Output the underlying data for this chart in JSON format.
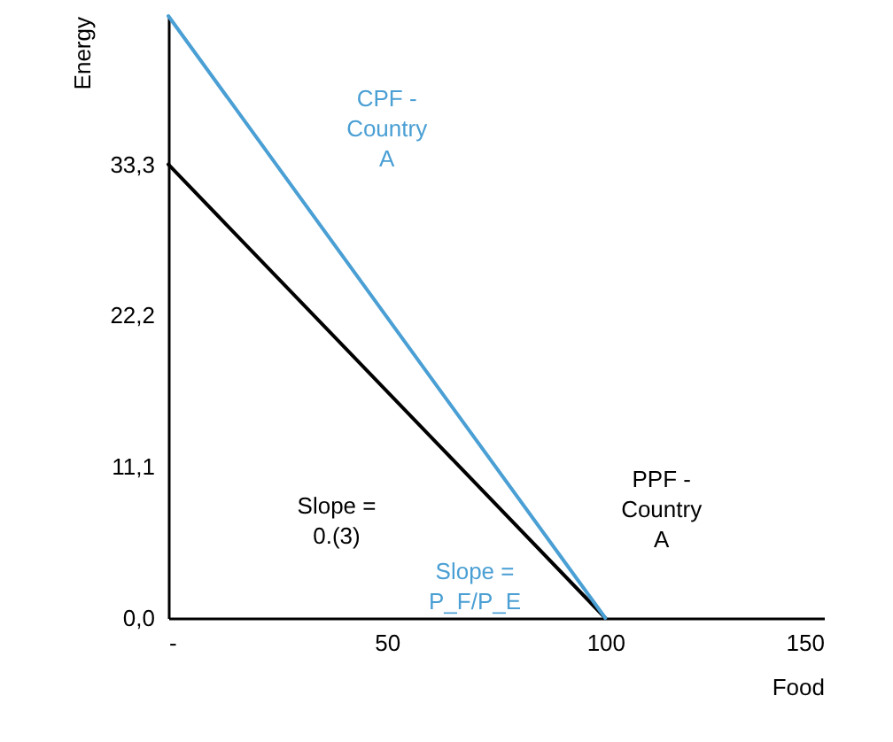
{
  "chart_data": {
    "type": "line",
    "xlabel": "Food",
    "ylabel": "Energy",
    "xlim": [
      0,
      150
    ],
    "ylim": [
      0,
      44.2
    ],
    "xticks": [
      {
        "value": 0,
        "label": "-"
      },
      50,
      100,
      150
    ],
    "yticks": [
      {
        "value": 0,
        "label": "0,0"
      },
      {
        "value": 11.1,
        "label": "11,1"
      },
      {
        "value": 22.2,
        "label": "22,2"
      },
      {
        "value": 33.3,
        "label": "33,3"
      }
    ],
    "x": [
      0,
      100
    ],
    "series": [
      {
        "name": "PPF - Country A",
        "color": "#000000",
        "values": [
          33.3,
          0
        ]
      },
      {
        "name": "CPF - Country A",
        "color": "#4a9fd4",
        "values": [
          44.2,
          0
        ]
      }
    ],
    "annotations": [
      "Slope = 0.(3)",
      "Slope = P_F/P_E"
    ],
    "grid": false,
    "legend": false,
    "marker": "none",
    "line_style": "solid"
  }
}
